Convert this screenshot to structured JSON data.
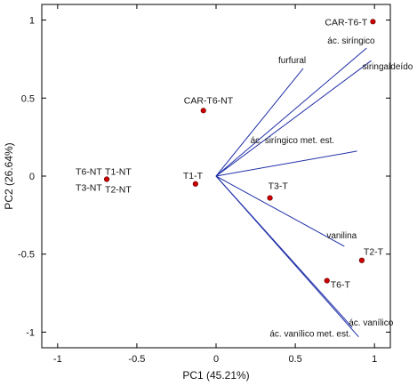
{
  "chart_data": {
    "type": "scatter",
    "subtype": "biplot",
    "xlabel": "PC1 (45.21%)",
    "ylabel": "PC2 (26.64%)",
    "xlim": [
      -1.1,
      1.1
    ],
    "ylim": [
      -1.1,
      1.1
    ],
    "xticks": [
      -1,
      -0.5,
      0,
      0.5,
      1
    ],
    "yticks": [
      -1,
      -0.5,
      0,
      0.5,
      1
    ],
    "xtick_labels": [
      "-1",
      "-0.5",
      "0",
      "0.5",
      "1"
    ],
    "ytick_labels": [
      "-1",
      "-0.5",
      "0",
      "0.5",
      "1"
    ],
    "grid": false,
    "colors": {
      "points": "#cc0000",
      "vectors": "#1f2fa8",
      "axes": "#000000"
    },
    "points": [
      {
        "label": "CAR-T6-T",
        "x": 0.99,
        "y": 0.99
      },
      {
        "label": "CAR-T6-NT",
        "x": -0.08,
        "y": 0.42
      },
      {
        "label": "T1-T",
        "x": -0.13,
        "y": -0.05
      },
      {
        "label": "T3-T",
        "x": 0.34,
        "y": -0.14
      },
      {
        "label": "T2-T",
        "x": 0.92,
        "y": -0.54
      },
      {
        "label": "T6-T",
        "x": 0.7,
        "y": -0.67
      },
      {
        "label": "T6-NT",
        "x": -0.69,
        "y": -0.02
      },
      {
        "label": "T1-NT",
        "x": -0.69,
        "y": -0.02
      },
      {
        "label": "T3-NT",
        "x": -0.69,
        "y": -0.02
      },
      {
        "label": "T2-NT",
        "x": -0.69,
        "y": -0.02
      }
    ],
    "vectors": [
      {
        "label": "ác. siríngico",
        "x": 0.95,
        "y": 0.82
      },
      {
        "label": "siringaldeído",
        "x": 0.98,
        "y": 0.74
      },
      {
        "label": "furfural",
        "x": 0.55,
        "y": 0.69
      },
      {
        "label": "ác. siríngico met. est.",
        "x": 0.89,
        "y": 0.16
      },
      {
        "label": "vanilina",
        "x": 0.81,
        "y": -0.45
      },
      {
        "label": "ác. vanílico",
        "x": 0.86,
        "y": -0.97
      },
      {
        "label": "ác. vanílico met. est.",
        "x": 0.9,
        "y": -1.03
      }
    ]
  }
}
